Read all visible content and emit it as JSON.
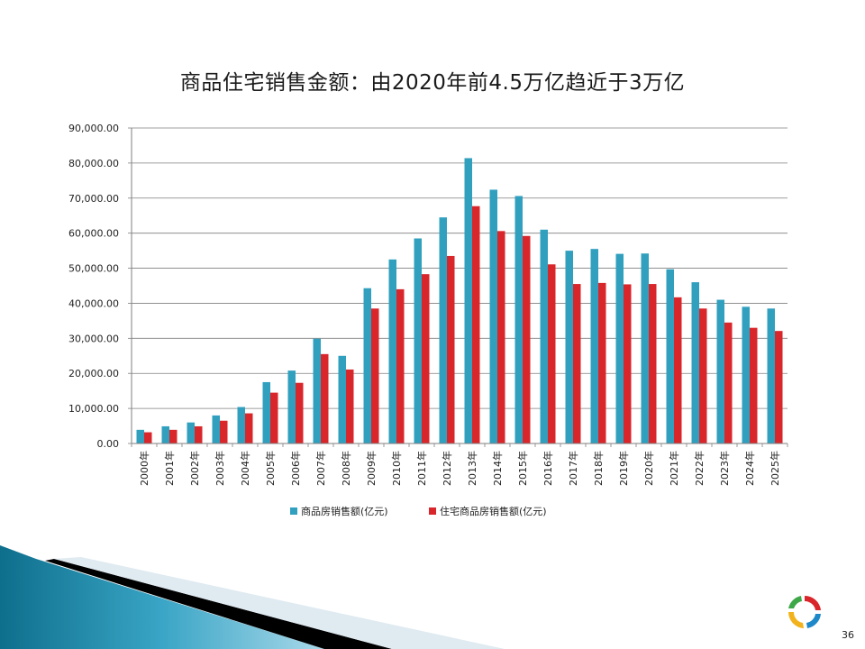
{
  "slide": {
    "title": "商品住宅销售金额：由2020年前4.5万亿趋近于3万亿",
    "page_number": "36"
  },
  "colors": {
    "series_1": "#31a0bf",
    "series_2": "#d9262b",
    "grid": "#7f7f7f"
  },
  "chart_data": {
    "type": "bar",
    "categories": [
      "2000年",
      "2001年",
      "2002年",
      "2003年",
      "2004年",
      "2005年",
      "2006年",
      "2007年",
      "2008年",
      "2009年",
      "2010年",
      "2011年",
      "2012年",
      "2013年",
      "2014年",
      "2015年",
      "2016年",
      "2017年",
      "2018年",
      "2019年",
      "2020年",
      "2021年",
      "2022年",
      "2023年",
      "2024年",
      "2025年"
    ],
    "series": [
      {
        "name": "商品房销售额(亿元)",
        "values": [
          3900,
          4900,
          6000,
          8000,
          10400,
          17500,
          20800,
          29900,
          25000,
          44300,
          52500,
          58500,
          64500,
          81400,
          72400,
          70600,
          61000,
          55000,
          55500,
          54100,
          54200,
          49700,
          46000,
          41000,
          39000,
          38500
        ]
      },
      {
        "name": "住宅商品房销售额(亿元)",
        "values": [
          3200,
          3900,
          4900,
          6500,
          8600,
          14500,
          17300,
          25500,
          21100,
          38500,
          44000,
          48300,
          53500,
          67700,
          60600,
          59200,
          51100,
          45500,
          45800,
          45400,
          45500,
          41700,
          38500,
          34500,
          33000,
          32100
        ]
      }
    ],
    "yticks": [
      "0.00",
      "10,000.00",
      "20,000.00",
      "30,000.00",
      "40,000.00",
      "50,000.00",
      "60,000.00",
      "70,000.00",
      "80,000.00",
      "90,000.00"
    ],
    "ylim": [
      0,
      90000
    ],
    "grid": true,
    "legend_position": "bottom"
  }
}
